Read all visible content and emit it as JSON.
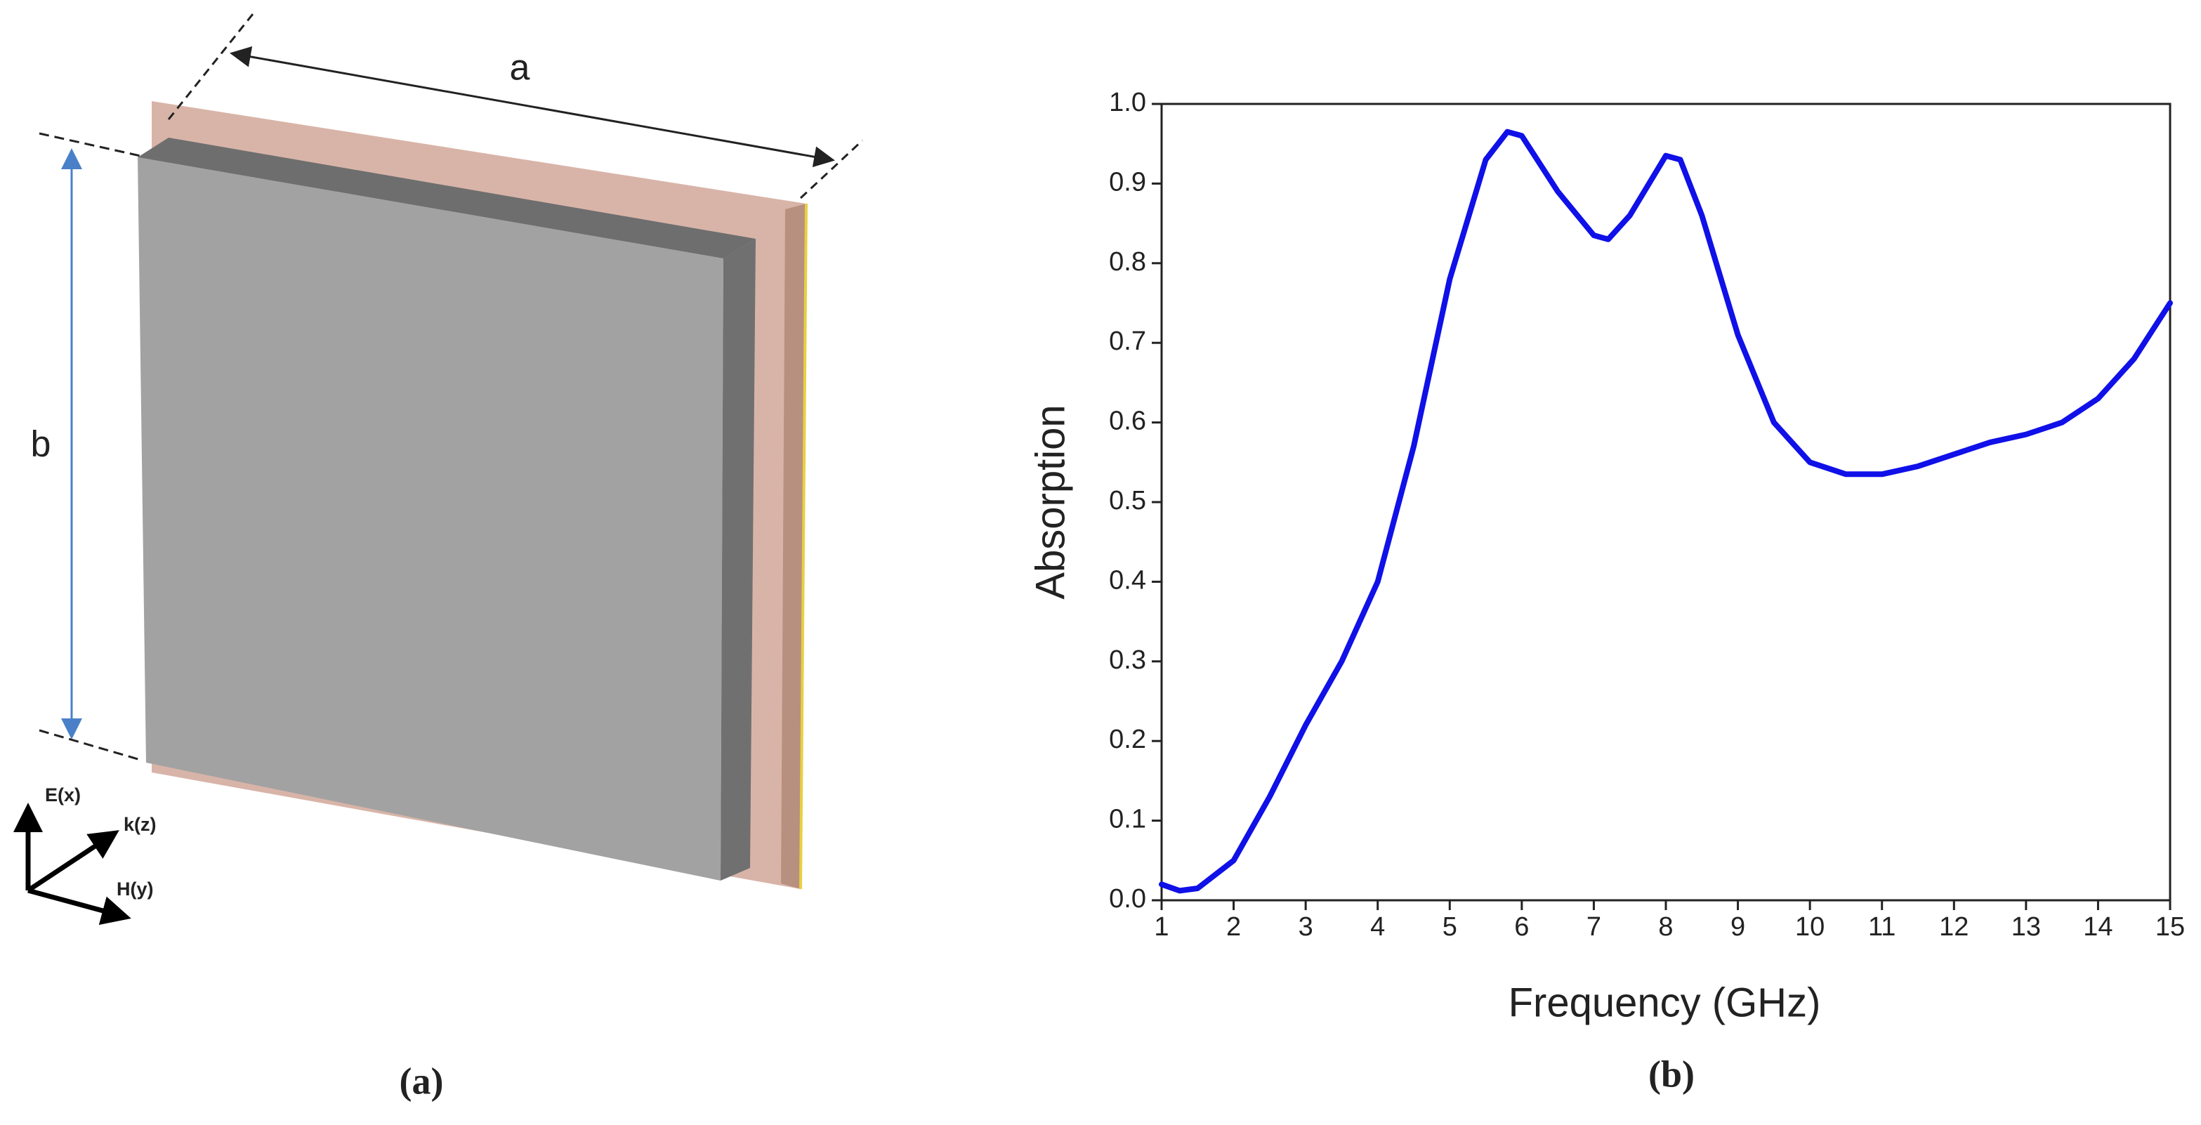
{
  "diagram": {
    "width_label": "a",
    "height_label": "b",
    "axes": [
      "E(x)",
      "k(z)",
      "H(y)"
    ],
    "panel_label": "(a)"
  },
  "chart_data": {
    "type": "line",
    "panel_label": "(b)",
    "x_label": "Frequency (GHz)",
    "y_label": "Absorption",
    "x": [
      1,
      1.25,
      1.5,
      2,
      2.5,
      3,
      3.5,
      4,
      4.5,
      5,
      5.5,
      5.8,
      6,
      6.5,
      7,
      7.2,
      7.5,
      8,
      8.2,
      8.5,
      9,
      9.5,
      10,
      10.5,
      11,
      11.5,
      12,
      12.5,
      13,
      13.5,
      14,
      14.5,
      15
    ],
    "series": [
      {
        "color": "#1010e8",
        "values": [
          0.02,
          0.012,
          0.015,
          0.05,
          0.13,
          0.22,
          0.3,
          0.4,
          0.57,
          0.78,
          0.93,
          0.965,
          0.96,
          0.89,
          0.835,
          0.83,
          0.86,
          0.935,
          0.93,
          0.86,
          0.71,
          0.6,
          0.55,
          0.535,
          0.535,
          0.545,
          0.56,
          0.575,
          0.585,
          0.6,
          0.63,
          0.68,
          0.75
        ]
      }
    ],
    "xlim": [
      1,
      15
    ],
    "ylim": [
      0,
      1
    ],
    "xticks": [
      1,
      2,
      3,
      4,
      5,
      6,
      7,
      8,
      9,
      10,
      11,
      12,
      13,
      14,
      15
    ],
    "yticks": [
      {
        "value": 0,
        "label": "0.0"
      },
      0.1,
      0.2,
      0.3,
      0.4,
      0.5,
      0.6,
      0.7,
      0.8,
      0.9,
      {
        "value": 1,
        "label": "1.0"
      }
    ]
  }
}
